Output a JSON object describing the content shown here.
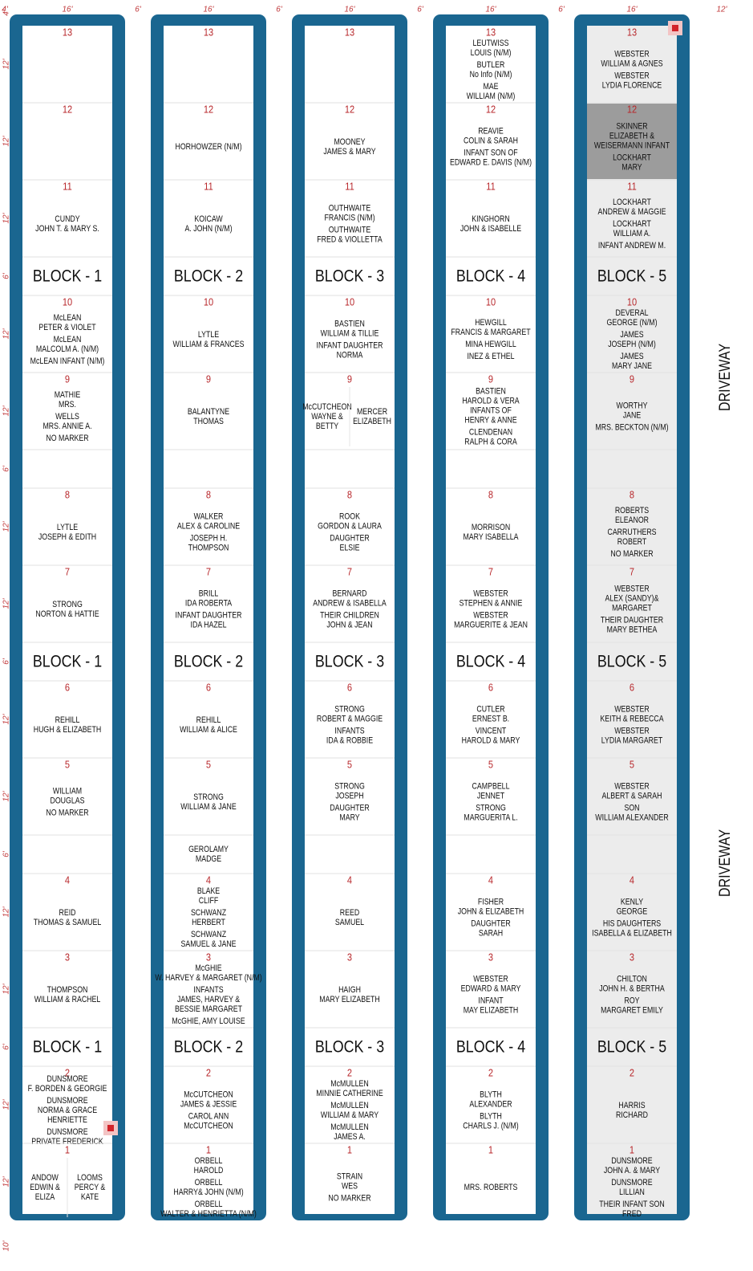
{
  "top_dimensions": [
    "4'",
    "16'",
    "6'",
    "16'",
    "6'",
    "16'",
    "6'",
    "16'",
    "6'",
    "16'",
    "12'"
  ],
  "left_dimensions": [
    "4'",
    "12'",
    "12'",
    "12'",
    "6'",
    "12'",
    "12'",
    "6'",
    "12'",
    "12'",
    "6'",
    "12'",
    "12'",
    "6'",
    "12'",
    "12'",
    "6'",
    "12'",
    "12'",
    "10'"
  ],
  "driveway": [
    "DRIVEWAY",
    "DRIVEWAY"
  ],
  "columns": [
    {
      "rows": [
        {
          "number": "13",
          "entries": []
        },
        {
          "number": "12",
          "entries": []
        },
        {
          "number": "11",
          "entries": [
            [
              "CUNDY",
              "JOHN T. & MARY S."
            ]
          ]
        },
        {
          "block": "BLOCK - 1"
        },
        {
          "number": "10",
          "entries": [
            [
              "McLEAN",
              "PETER & VIOLET"
            ],
            [
              "McLEAN",
              "MALCOLM A. (N/M)"
            ],
            [
              "McLEAN INFANT (N/M)"
            ]
          ]
        },
        {
          "number": "9",
          "entries": [
            [
              "MATHIE",
              "MRS."
            ],
            [
              "WELLS",
              "MRS. ANNIE A."
            ],
            [
              "NO MARKER"
            ]
          ]
        },
        {
          "entries": []
        },
        {
          "number": "8",
          "entries": [
            [
              "LYTLE",
              "JOSEPH & EDITH"
            ]
          ]
        },
        {
          "number": "7",
          "entries": [
            [
              "STRONG",
              "NORTON & HATTIE"
            ]
          ]
        },
        {
          "block": "BLOCK - 1"
        },
        {
          "number": "6",
          "entries": [
            [
              "REHILL",
              "HUGH & ELIZABETH"
            ]
          ]
        },
        {
          "number": "5",
          "entries": [
            [
              "WILLIAM",
              "DOUGLAS"
            ],
            [
              "NO MARKER"
            ]
          ]
        },
        {
          "entries": []
        },
        {
          "number": "4",
          "entries": [
            [
              "REID",
              "THOMAS & SAMUEL"
            ]
          ]
        },
        {
          "number": "3",
          "entries": [
            [
              "THOMPSON",
              "WILLIAM & RACHEL"
            ]
          ]
        },
        {
          "block": "BLOCK - 1"
        },
        {
          "number": "2",
          "entries": [
            [
              "DUNSMORE",
              "F. BORDEN & GEORGIE"
            ],
            [
              "DUNSMORE",
              "NORMA & GRACE",
              "HENRIETTE"
            ],
            [
              "DUNSMORE",
              "PRIVATE FREDERICK"
            ]
          ]
        },
        {
          "number": "1",
          "split": [
            [
              "ANDOW",
              "EDWIN &",
              "ELIZA"
            ],
            [
              "LOOMS",
              "PERCY &",
              "KATE"
            ]
          ]
        }
      ]
    },
    {
      "rows": [
        {
          "number": "13",
          "entries": []
        },
        {
          "number": "12",
          "entries": [
            [
              "HORHOWZER (N/M)"
            ]
          ]
        },
        {
          "number": "11",
          "entries": [
            [
              "KOICAW",
              "A. JOHN (N/M)"
            ]
          ]
        },
        {
          "block": "BLOCK - 2"
        },
        {
          "number": "10",
          "entries": [
            [
              "LYTLE",
              "WILLIAM & FRANCES"
            ]
          ]
        },
        {
          "number": "9",
          "entries": [
            [
              "BALANTYNE",
              "THOMAS"
            ]
          ]
        },
        {
          "entries": []
        },
        {
          "number": "8",
          "entries": [
            [
              "WALKER",
              "ALEX & CAROLINE"
            ],
            [
              "JOSEPH H.",
              "THOMPSON"
            ]
          ]
        },
        {
          "number": "7",
          "entries": [
            [
              "BRILL",
              "IDA ROBERTA"
            ],
            [
              "INFANT DAUGHTER",
              "IDA HAZEL"
            ]
          ]
        },
        {
          "block": "BLOCK - 2"
        },
        {
          "number": "6",
          "entries": [
            [
              "REHILL",
              "WILLIAM & ALICE"
            ]
          ]
        },
        {
          "number": "5",
          "entries": [
            [
              "STRONG",
              "WILLIAM & JANE"
            ]
          ]
        },
        {
          "entries": [
            [
              "GEROLAMY",
              "MADGE"
            ]
          ]
        },
        {
          "number": "4",
          "entries": [
            [
              "BLAKE",
              "CLIFF"
            ],
            [
              "SCHWANZ",
              "HERBERT"
            ],
            [
              "SCHWANZ",
              "SAMUEL & JANE"
            ]
          ]
        },
        {
          "number": "3",
          "entries": [
            [
              "McGHIE",
              "W. HARVEY & MARGARET (N/M)"
            ],
            [
              "INFANTS",
              "JAMES, HARVEY &",
              "BESSIE MARGARET"
            ],
            [
              "McGHIE, AMY LOUISE"
            ]
          ]
        },
        {
          "block": "BLOCK - 2"
        },
        {
          "number": "2",
          "entries": [
            [
              "McCUTCHEON",
              "JAMES & JESSIE"
            ],
            [
              "CAROL ANN",
              "McCUTCHEON"
            ]
          ]
        },
        {
          "number": "1",
          "entries": [
            [
              "ORBELL",
              "HAROLD"
            ],
            [
              "ORBELL",
              "HARRY& JOHN (N/M)"
            ],
            [
              "ORBELL",
              "WALTER & HENRIETTA (N/M)"
            ]
          ]
        }
      ]
    },
    {
      "rows": [
        {
          "number": "13",
          "entries": []
        },
        {
          "number": "12",
          "entries": [
            [
              "MOONEY",
              "JAMES & MARY"
            ]
          ]
        },
        {
          "number": "11",
          "entries": [
            [
              "OUTHWAITE",
              "FRANCIS (N/M)"
            ],
            [
              "OUTHWAITE",
              "FRED & VIOLLETTA"
            ]
          ]
        },
        {
          "block": "BLOCK - 3"
        },
        {
          "number": "10",
          "entries": [
            [
              "BASTIEN",
              "WILLIAM & TILLIE"
            ],
            [
              "INFANT DAUGHTER",
              "NORMA"
            ]
          ]
        },
        {
          "number": "9",
          "split": [
            [
              "McCUTCHEON",
              "WAYNE &",
              "BETTY"
            ],
            [
              "MERCER",
              "ELIZABETH"
            ]
          ]
        },
        {
          "entries": []
        },
        {
          "number": "8",
          "entries": [
            [
              "ROOK",
              "GORDON & LAURA"
            ],
            [
              "DAUGHTER",
              "ELSIE"
            ]
          ]
        },
        {
          "number": "7",
          "entries": [
            [
              "BERNARD",
              "ANDREW & ISABELLA"
            ],
            [
              "THEIR CHILDREN",
              "JOHN & JEAN"
            ]
          ]
        },
        {
          "block": "BLOCK - 3"
        },
        {
          "number": "6",
          "entries": [
            [
              "STRONG",
              "ROBERT & MAGGIE"
            ],
            [
              "INFANTS",
              "IDA & ROBBIE"
            ]
          ]
        },
        {
          "number": "5",
          "entries": [
            [
              "STRONG",
              "JOSEPH"
            ],
            [
              "DAUGHTER",
              "MARY"
            ]
          ]
        },
        {
          "entries": []
        },
        {
          "number": "4",
          "entries": [
            [
              "REED",
              "SAMUEL"
            ]
          ]
        },
        {
          "number": "3",
          "entries": [
            [
              "HAIGH",
              "MARY ELIZABETH"
            ]
          ]
        },
        {
          "block": "BLOCK - 3"
        },
        {
          "number": "2",
          "entries": [
            [
              "McMULLEN",
              "MINNIE CATHERINE"
            ],
            [
              "McMULLEN",
              "WILLIAM & MARY"
            ],
            [
              "McMULLEN",
              "JAMES A."
            ]
          ]
        },
        {
          "number": "1",
          "entries": [
            [
              "STRAIN",
              "WES"
            ],
            [
              "NO MARKER"
            ]
          ]
        }
      ]
    },
    {
      "rows": [
        {
          "number": "13",
          "entries": [
            [
              "LEUTWISS",
              "LOUIS (N/M)"
            ],
            [
              "BUTLER",
              "No Info (N/M)"
            ],
            [
              "MAE",
              "WILLIAM (N/M)"
            ]
          ]
        },
        {
          "number": "12",
          "entries": [
            [
              "REAVIE",
              "COLIN & SARAH"
            ],
            [
              "INFANT SON OF",
              "EDWARD E. DAVIS (N/M)"
            ]
          ]
        },
        {
          "number": "11",
          "entries": [
            [
              "KINGHORN",
              "JOHN & ISABELLE"
            ]
          ]
        },
        {
          "block": "BLOCK - 4"
        },
        {
          "number": "10",
          "entries": [
            [
              "HEWGILL",
              "FRANCIS & MARGARET"
            ],
            [
              "MINA HEWGILL"
            ],
            [
              "INEZ & ETHEL"
            ]
          ]
        },
        {
          "number": "9",
          "entries": [
            [
              "BASTIEN",
              "HAROLD & VERA",
              "INFANTS OF",
              "HENRY & ANNE"
            ],
            [
              "CLENDENAN",
              "RALPH & CORA"
            ]
          ]
        },
        {
          "entries": []
        },
        {
          "number": "8",
          "entries": [
            [
              "MORRISON",
              "MARY ISABELLA"
            ]
          ]
        },
        {
          "number": "7",
          "entries": [
            [
              "WEBSTER",
              "STEPHEN & ANNIE"
            ],
            [
              "WEBSTER",
              "MARGUERITE & JEAN"
            ]
          ]
        },
        {
          "block": "BLOCK - 4"
        },
        {
          "number": "6",
          "entries": [
            [
              "CUTLER",
              "ERNEST B."
            ],
            [
              "VINCENT",
              "HAROLD & MARY"
            ]
          ]
        },
        {
          "number": "5",
          "entries": [
            [
              "CAMPBELL",
              "JENNET"
            ],
            [
              "STRONG",
              "MARGUERITA L."
            ]
          ]
        },
        {
          "entries": []
        },
        {
          "number": "4",
          "entries": [
            [
              "FISHER",
              "JOHN & ELIZABETH"
            ],
            [
              "DAUGHTER",
              "SARAH"
            ]
          ]
        },
        {
          "number": "3",
          "entries": [
            [
              "WEBSTER",
              "EDWARD & MARY"
            ],
            [
              "INFANT",
              "MAY ELIZABETH"
            ]
          ]
        },
        {
          "block": "BLOCK - 4"
        },
        {
          "number": "2",
          "entries": [
            [
              "BLYTH",
              "ALEXANDER"
            ],
            [
              "BLYTH",
              "CHARLS J. (N/M)"
            ]
          ]
        },
        {
          "number": "1",
          "entries": [
            [
              "MRS. ROBERTS"
            ]
          ]
        }
      ]
    },
    {
      "background": "#ececec",
      "rows": [
        {
          "number": "13",
          "entries": [
            [
              "WEBSTER",
              "WILLIAM & AGNES"
            ],
            [
              "WEBSTER",
              "LYDIA FLORENCE"
            ]
          ]
        },
        {
          "number": "12",
          "background": "#9c9c9c",
          "entries": [
            [
              "SKINNER",
              "ELIZABETH &",
              "WEISERMANN INFANT"
            ],
            [
              "LOCKHART",
              "MARY"
            ]
          ]
        },
        {
          "number": "11",
          "entries": [
            [
              "LOCKHART",
              "ANDREW & MAGGIE"
            ],
            [
              "LOCKHART",
              "WILLIAM A."
            ],
            [
              "INFANT ANDREW M."
            ]
          ]
        },
        {
          "block": "BLOCK - 5"
        },
        {
          "number": "10",
          "entries": [
            [
              "DEVERAL",
              "GEORGE (N/M)"
            ],
            [
              "JAMES",
              "JOSEPH (N/M)"
            ],
            [
              "JAMES",
              "MARY JANE"
            ]
          ]
        },
        {
          "number": "9",
          "entries": [
            [
              "WORTHY",
              "JANE"
            ],
            [
              "MRS. BECKTON (N/M)"
            ]
          ]
        },
        {
          "entries": []
        },
        {
          "number": "8",
          "entries": [
            [
              "ROBERTS",
              "ELEANOR"
            ],
            [
              "CARRUTHERS",
              "ROBERT"
            ],
            [
              "NO MARKER"
            ]
          ]
        },
        {
          "number": "7",
          "entries": [
            [
              "WEBSTER",
              "ALEX (SANDY)&",
              "MARGARET"
            ],
            [
              "THEIR DAUGHTER",
              "MARY BETHEA"
            ]
          ]
        },
        {
          "block": "BLOCK - 5"
        },
        {
          "number": "6",
          "entries": [
            [
              "WEBSTER",
              "KEITH & REBECCA"
            ],
            [
              "WEBSTER",
              "LYDIA MARGARET"
            ]
          ]
        },
        {
          "number": "5",
          "entries": [
            [
              "WEBSTER",
              "ALBERT & SARAH"
            ],
            [
              "SON",
              "WILLIAM ALEXANDER"
            ]
          ]
        },
        {
          "entries": []
        },
        {
          "number": "4",
          "entries": [
            [
              "KENLY",
              "GEORGE"
            ],
            [
              "HIS DAUGHTERS",
              "ISABELLA & ELIZABETH"
            ]
          ]
        },
        {
          "number": "3",
          "entries": [
            [
              "CHILTON",
              "JOHN H. & BERTHA"
            ],
            [
              "ROY",
              "MARGARET EMILY"
            ]
          ]
        },
        {
          "block": "BLOCK - 5"
        },
        {
          "number": "2",
          "entries": [
            [
              "HARRIS",
              "RICHARD"
            ]
          ]
        },
        {
          "number": "1",
          "entries": [
            [
              "DUNSMORE",
              "JOHN A. & MARY"
            ],
            [
              "DUNSMORE",
              "LILLIAN"
            ],
            [
              "THEIR INFANT SON",
              "FRED"
            ]
          ]
        }
      ]
    }
  ]
}
